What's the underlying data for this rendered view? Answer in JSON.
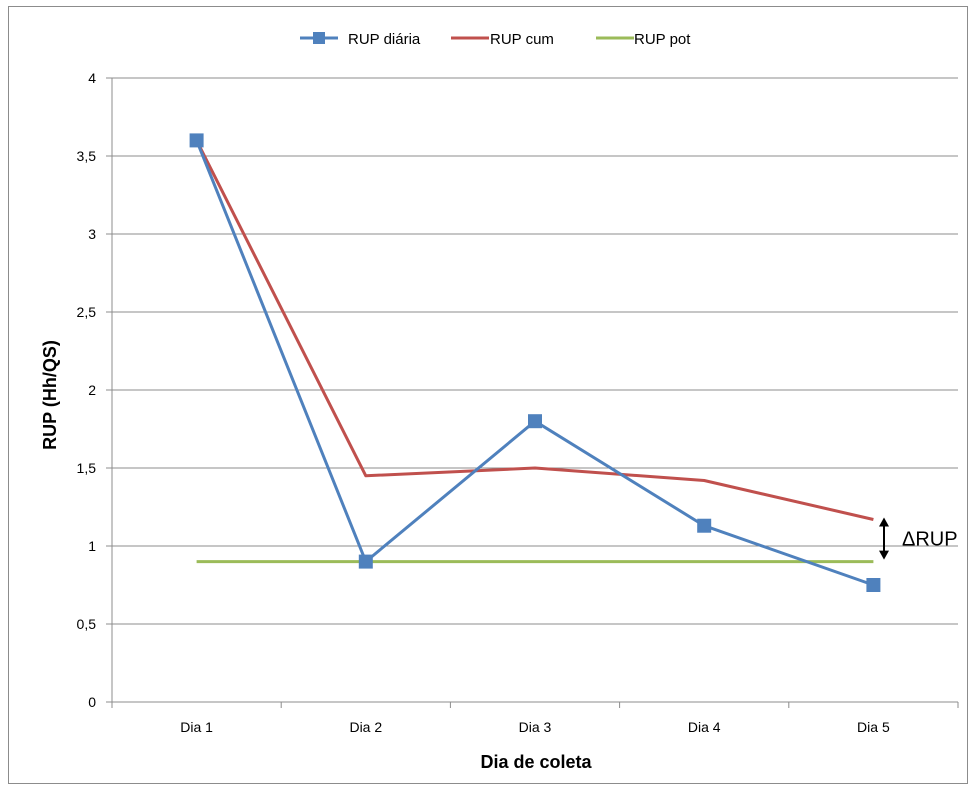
{
  "chart_data": {
    "type": "line",
    "title": "",
    "xlabel": "Dia de coleta",
    "ylabel": "RUP (Hh/QS)",
    "categories": [
      "Dia 1",
      "Dia 2",
      "Dia 3",
      "Dia 4",
      "Dia 5"
    ],
    "ylim": [
      0,
      4
    ],
    "yticks": [
      "0",
      "0,5",
      "1",
      "1,5",
      "2",
      "2,5",
      "3",
      "3,5",
      "4"
    ],
    "ytick_values": [
      0,
      0.5,
      1,
      1.5,
      2,
      2.5,
      3,
      3.5,
      4
    ],
    "grid": true,
    "legend_position": "top",
    "series": [
      {
        "name": "RUP diária",
        "values": [
          3.6,
          0.9,
          1.8,
          1.13,
          0.75
        ],
        "color": "#4F81BD",
        "marker": "square"
      },
      {
        "name": "RUP cum",
        "values": [
          3.6,
          1.45,
          1.5,
          1.42,
          1.17
        ],
        "color": "#C0504D",
        "marker": "none"
      },
      {
        "name": "RUP pot",
        "values": [
          0.9,
          0.9,
          0.9,
          0.9,
          0.9
        ],
        "color": "#9BBB59",
        "marker": "none"
      }
    ],
    "annotations": [
      {
        "text": "ΔRUP",
        "category": "Dia 5",
        "from": 0.9,
        "to": 1.17
      }
    ]
  }
}
